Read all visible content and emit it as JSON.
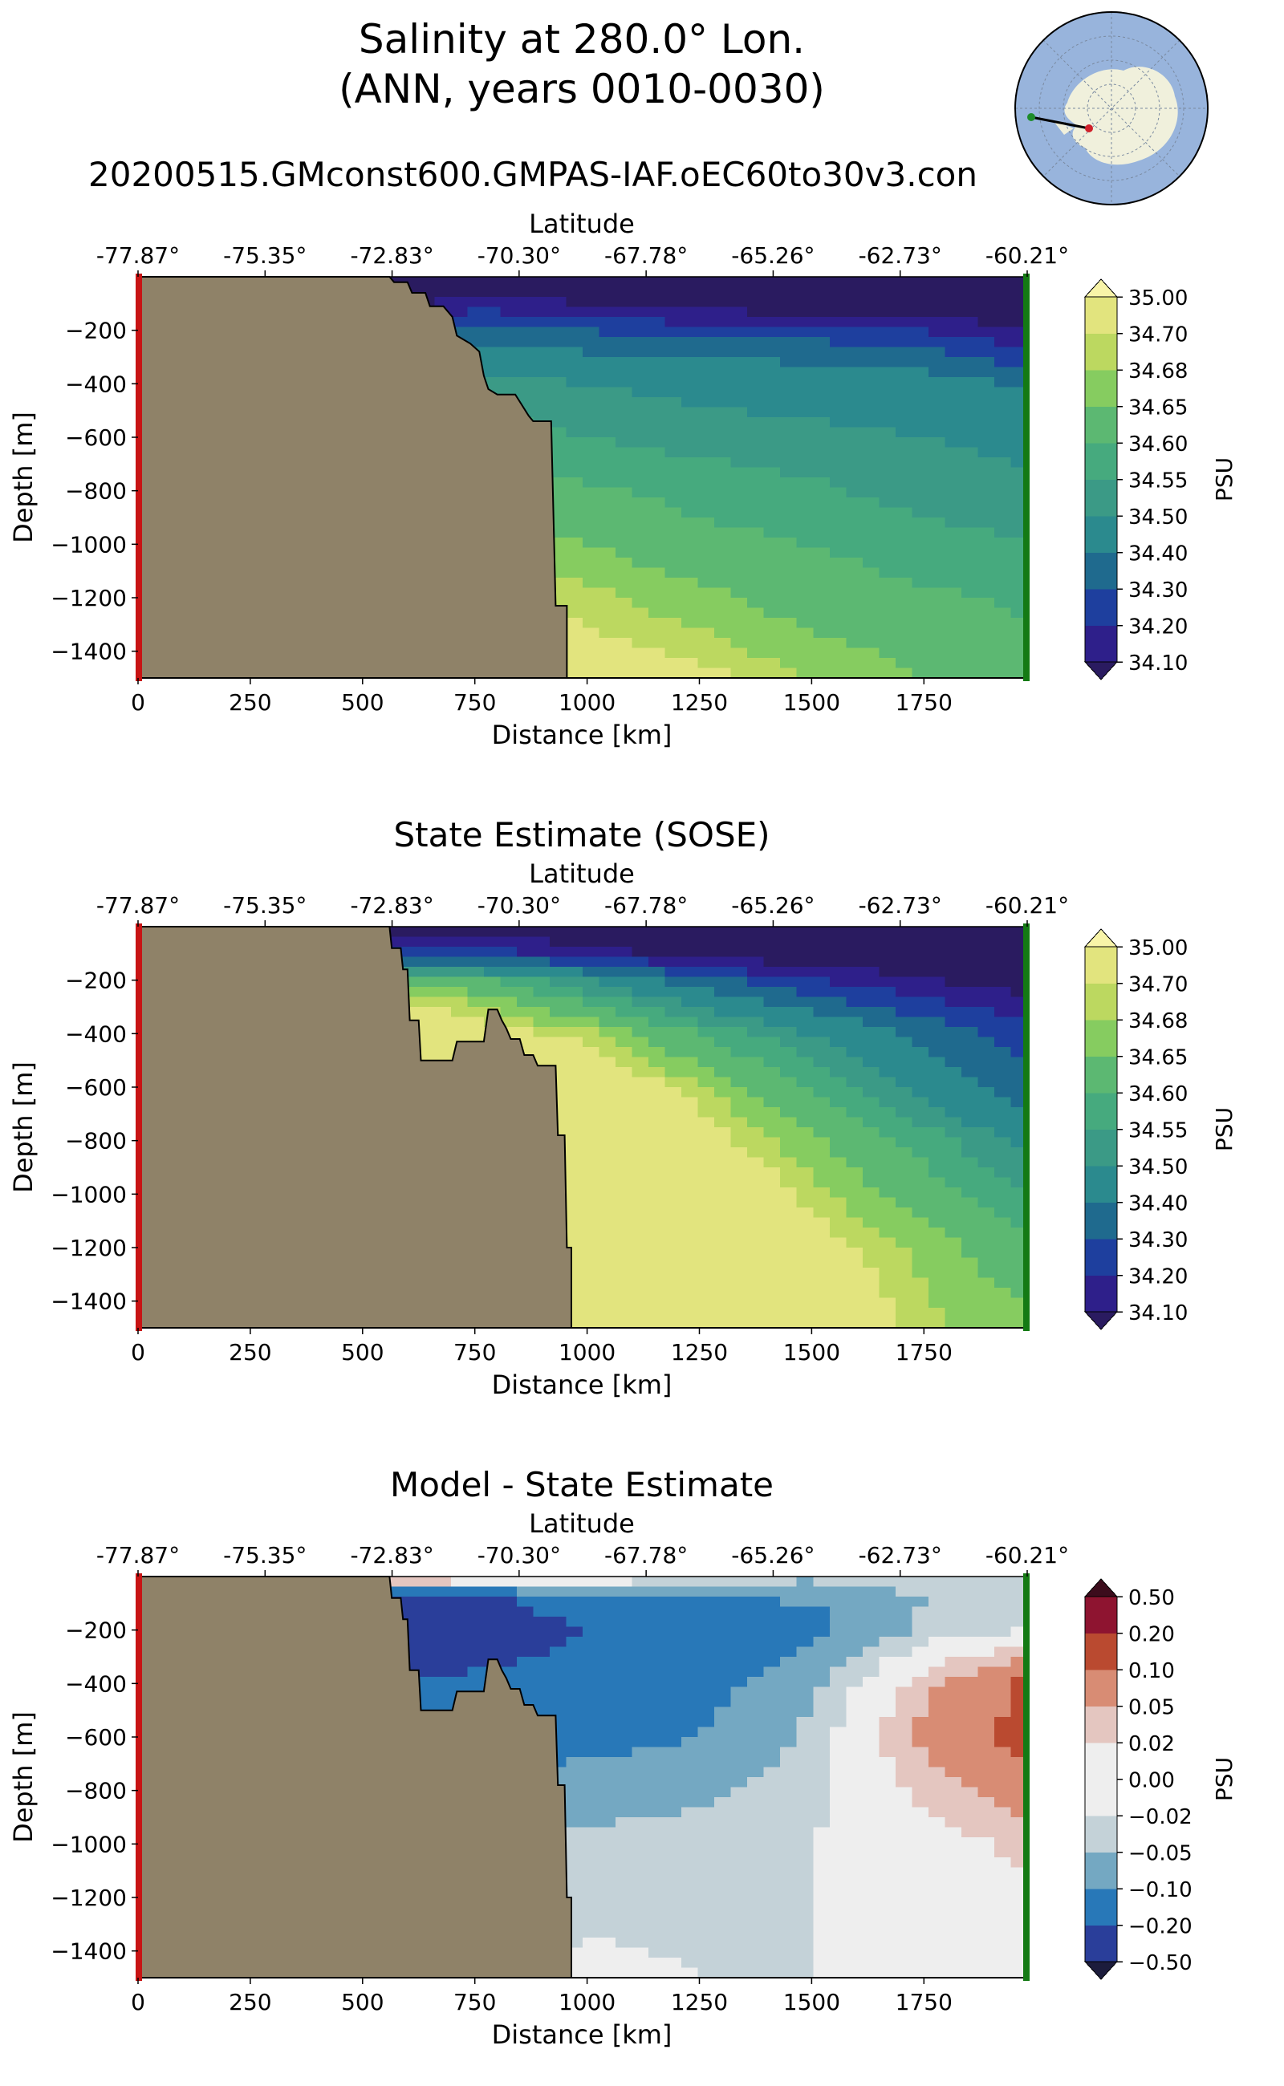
{
  "figure": {
    "title_line1": "Salinity at 280.0° Lon.",
    "title_line2": "(ANN, years 0010-0030)",
    "run_name": "20200515.GMconst600.GMPAS-IAF.oEC60to30v3.con"
  },
  "inset_map": {
    "ocean_color": "#98b4dc",
    "land_color": "#f0f0dc",
    "start_marker_color": "#d0202a",
    "end_marker_color": "#1e8c2a"
  },
  "chart_data": [
    {
      "type": "heatmap",
      "subtitle": "",
      "xlabel": "Distance [km]",
      "ylabel": "Depth [m]",
      "top_axis_label": "Latitude",
      "xlim": [
        0,
        1980
      ],
      "ylim": [
        -1500,
        0
      ],
      "x_ticks": [
        0,
        250,
        500,
        750,
        1000,
        1250,
        1500,
        1750
      ],
      "y_ticks": [
        -200,
        -400,
        -600,
        -800,
        -1000,
        -1200,
        -1400
      ],
      "y_tick_labels": [
        "−200",
        "−400",
        "−600",
        "−800",
        "−1000",
        "−1200",
        "−1400"
      ],
      "lat_ticks": [
        "-77.87°",
        "-75.35°",
        "-72.83°",
        "-70.30°",
        "-67.78°",
        "-65.26°",
        "-62.73°",
        "-60.21°"
      ],
      "colorbar_label": "PSU",
      "colorbar_ticks": [
        "35.00",
        "34.70",
        "34.68",
        "34.65",
        "34.60",
        "34.55",
        "34.50",
        "34.40",
        "34.30",
        "34.20",
        "34.10"
      ],
      "levels": [
        34.1,
        34.2,
        34.3,
        34.4,
        34.5,
        34.55,
        34.6,
        34.65,
        34.68,
        34.7,
        35.0
      ],
      "colors": [
        "#2e1f8a",
        "#1e3f9e",
        "#1f6a8e",
        "#2b8a8e",
        "#3b9a86",
        "#46aa7e",
        "#5cb872",
        "#86cc60",
        "#bcd860",
        "#e2e47e"
      ],
      "under_color": "#2a1b60",
      "over_color": "#f8f4a8",
      "land_color": "#8f8268",
      "start_marker_color": "#c81414",
      "end_marker_color": "#147a14",
      "land_profile": {
        "x": [
          0,
          560,
          570,
          600,
          610,
          640,
          650,
          680,
          700,
          710,
          740,
          760,
          770,
          780,
          800,
          820,
          840,
          870,
          880,
          920,
          930,
          955,
          955,
          1980
        ],
        "depth": [
          0,
          0,
          -20,
          -20,
          -60,
          -60,
          -110,
          -110,
          -150,
          -220,
          -250,
          -280,
          -370,
          -420,
          -440,
          -440,
          -440,
          -520,
          -540,
          -540,
          -1230,
          -1230,
          -1500,
          -1500
        ]
      },
      "field": {
        "x": [
          0,
          250,
          500,
          750,
          1000,
          1250,
          1500,
          1750,
          1980
        ],
        "depth": [
          0,
          -100,
          -200,
          -300,
          -400,
          -600,
          -800,
          -1000,
          -1200,
          -1500
        ],
        "values": [
          [
            34.0,
            34.0,
            34.0,
            34.0,
            34.0,
            34.0,
            34.0,
            34.0,
            34.0
          ],
          [
            34.0,
            34.0,
            34.0,
            34.15,
            34.1,
            34.05,
            34.0,
            34.0,
            34.0
          ],
          [
            34.25,
            34.25,
            34.25,
            34.35,
            34.3,
            34.25,
            34.25,
            34.2,
            34.1
          ],
          [
            34.45,
            34.45,
            34.45,
            34.45,
            34.42,
            34.4,
            34.38,
            34.35,
            34.25
          ],
          [
            34.52,
            34.52,
            34.52,
            34.52,
            34.5,
            34.48,
            34.46,
            34.45,
            34.38
          ],
          [
            34.58,
            34.58,
            34.58,
            34.58,
            34.55,
            34.53,
            34.52,
            34.5,
            34.48
          ],
          [
            34.63,
            34.63,
            34.63,
            34.63,
            34.61,
            34.58,
            34.56,
            34.53,
            34.52
          ],
          [
            34.67,
            34.67,
            34.67,
            34.67,
            34.65,
            34.62,
            34.6,
            34.57,
            34.55
          ],
          [
            34.72,
            34.72,
            34.72,
            34.72,
            34.69,
            34.66,
            34.63,
            34.61,
            34.59
          ],
          [
            34.75,
            34.75,
            34.75,
            34.75,
            34.72,
            34.71,
            34.68,
            34.65,
            34.62
          ]
        ]
      }
    },
    {
      "type": "heatmap",
      "subtitle": "State Estimate (SOSE)",
      "xlabel": "Distance [km]",
      "ylabel": "Depth [m]",
      "top_axis_label": "Latitude",
      "xlim": [
        0,
        1980
      ],
      "ylim": [
        -1500,
        0
      ],
      "x_ticks": [
        0,
        250,
        500,
        750,
        1000,
        1250,
        1500,
        1750
      ],
      "y_ticks": [
        -200,
        -400,
        -600,
        -800,
        -1000,
        -1200,
        -1400
      ],
      "y_tick_labels": [
        "−200",
        "−400",
        "−600",
        "−800",
        "−1000",
        "−1200",
        "−1400"
      ],
      "lat_ticks": [
        "-77.87°",
        "-75.35°",
        "-72.83°",
        "-70.30°",
        "-67.78°",
        "-65.26°",
        "-62.73°",
        "-60.21°"
      ],
      "colorbar_label": "PSU",
      "colorbar_ticks": [
        "35.00",
        "34.70",
        "34.68",
        "34.65",
        "34.60",
        "34.55",
        "34.50",
        "34.40",
        "34.30",
        "34.20",
        "34.10"
      ],
      "levels": [
        34.1,
        34.2,
        34.3,
        34.4,
        34.5,
        34.55,
        34.6,
        34.65,
        34.68,
        34.7,
        35.0
      ],
      "colors": [
        "#2e1f8a",
        "#1e3f9e",
        "#1f6a8e",
        "#2b8a8e",
        "#3b9a86",
        "#46aa7e",
        "#5cb872",
        "#86cc60",
        "#bcd860",
        "#e2e47e"
      ],
      "under_color": "#2a1b60",
      "over_color": "#f8f4a8",
      "land_color": "#8f8268",
      "start_marker_color": "#c81414",
      "end_marker_color": "#147a14",
      "land_profile": {
        "x": [
          0,
          560,
          565,
          585,
          590,
          600,
          605,
          625,
          630,
          700,
          710,
          770,
          780,
          800,
          810,
          820,
          830,
          850,
          860,
          880,
          890,
          930,
          935,
          950,
          955,
          965,
          965,
          1980
        ],
        "depth": [
          0,
          0,
          -80,
          -80,
          -160,
          -160,
          -350,
          -350,
          -500,
          -500,
          -430,
          -430,
          -310,
          -310,
          -350,
          -380,
          -420,
          -420,
          -480,
          -480,
          -520,
          -520,
          -780,
          -780,
          -1200,
          -1200,
          -1500,
          -1500
        ]
      },
      "field": {
        "x": [
          0,
          250,
          500,
          750,
          1000,
          1250,
          1500,
          1750,
          1980
        ],
        "depth": [
          0,
          -100,
          -200,
          -300,
          -400,
          -600,
          -800,
          -1000,
          -1200,
          -1500
        ],
        "values": [
          [
            34.0,
            34.0,
            34.0,
            34.0,
            34.0,
            34.0,
            34.0,
            34.0,
            34.0
          ],
          [
            34.2,
            34.2,
            34.2,
            34.25,
            34.15,
            34.05,
            34.0,
            34.0,
            34.0
          ],
          [
            34.65,
            34.65,
            34.65,
            34.62,
            34.5,
            34.35,
            34.2,
            34.1,
            34.05
          ],
          [
            34.72,
            34.72,
            34.72,
            34.69,
            34.62,
            34.5,
            34.38,
            34.25,
            34.15
          ],
          [
            34.75,
            34.75,
            34.75,
            34.72,
            34.69,
            34.6,
            34.5,
            34.38,
            34.25
          ],
          [
            34.8,
            34.8,
            34.8,
            34.8,
            34.74,
            34.69,
            34.6,
            34.48,
            34.35
          ],
          [
            34.85,
            34.85,
            34.85,
            34.85,
            34.78,
            34.72,
            34.66,
            34.58,
            34.48
          ],
          [
            34.85,
            34.85,
            34.85,
            34.85,
            34.82,
            34.76,
            34.69,
            34.63,
            34.56
          ],
          [
            34.85,
            34.85,
            34.85,
            34.85,
            34.82,
            34.8,
            34.72,
            34.67,
            34.62
          ],
          [
            34.85,
            34.85,
            34.85,
            34.85,
            34.82,
            34.8,
            34.75,
            34.69,
            34.66
          ]
        ]
      }
    },
    {
      "type": "heatmap",
      "subtitle": "Model - State Estimate",
      "xlabel": "Distance [km]",
      "ylabel": "Depth [m]",
      "top_axis_label": "Latitude",
      "xlim": [
        0,
        1980
      ],
      "ylim": [
        -1500,
        0
      ],
      "x_ticks": [
        0,
        250,
        500,
        750,
        1000,
        1250,
        1500,
        1750
      ],
      "y_ticks": [
        -200,
        -400,
        -600,
        -800,
        -1000,
        -1200,
        -1400
      ],
      "y_tick_labels": [
        "−200",
        "−400",
        "−600",
        "−800",
        "−1000",
        "−1200",
        "−1400"
      ],
      "lat_ticks": [
        "-77.87°",
        "-75.35°",
        "-72.83°",
        "-70.30°",
        "-67.78°",
        "-65.26°",
        "-62.73°",
        "-60.21°"
      ],
      "colorbar_label": "PSU",
      "colorbar_ticks": [
        "0.50",
        "0.20",
        "0.10",
        "0.05",
        "0.02",
        "0.00",
        "−0.02",
        "−0.05",
        "−0.10",
        "−0.20",
        "−0.50"
      ],
      "levels": [
        -0.5,
        -0.2,
        -0.1,
        -0.05,
        -0.02,
        0.0,
        0.02,
        0.05,
        0.1,
        0.2,
        0.5
      ],
      "colors": [
        "#2a3e9a",
        "#2878b8",
        "#74a8c2",
        "#c4d2d8",
        "#eeeeee",
        "#eeeeee",
        "#e4c6c0",
        "#d88c74",
        "#ba4a30",
        "#8e1430"
      ],
      "under_color": "#1c1c3c",
      "over_color": "#3c0c1c",
      "land_color": "#8f8268",
      "start_marker_color": "#c81414",
      "end_marker_color": "#147a14",
      "land_profile": {
        "x": [
          0,
          560,
          565,
          585,
          590,
          600,
          605,
          625,
          630,
          700,
          710,
          770,
          780,
          800,
          810,
          820,
          830,
          850,
          860,
          880,
          890,
          930,
          935,
          950,
          955,
          965,
          965,
          1980
        ],
        "depth": [
          0,
          0,
          -80,
          -80,
          -160,
          -160,
          -350,
          -350,
          -500,
          -500,
          -430,
          -430,
          -310,
          -310,
          -350,
          -380,
          -420,
          -420,
          -480,
          -480,
          -520,
          -520,
          -780,
          -780,
          -1200,
          -1200,
          -1500,
          -1500
        ]
      },
      "field": {
        "x": [
          0,
          250,
          500,
          750,
          1000,
          1250,
          1500,
          1750,
          1980
        ],
        "depth": [
          0,
          -100,
          -200,
          -300,
          -400,
          -600,
          -800,
          -1000,
          -1200,
          -1500
        ],
        "values": [
          [
            0.15,
            0.15,
            0.15,
            0.06,
            0.03,
            -0.02,
            -0.04,
            -0.03,
            -0.03
          ],
          [
            -0.3,
            -0.3,
            -0.3,
            -0.25,
            -0.15,
            -0.12,
            -0.1,
            -0.05,
            -0.03
          ],
          [
            -0.3,
            -0.3,
            -0.3,
            -0.25,
            -0.2,
            -0.15,
            -0.12,
            -0.04,
            -0.02
          ],
          [
            -0.25,
            -0.25,
            -0.25,
            -0.22,
            -0.18,
            -0.16,
            -0.08,
            0.0,
            0.05
          ],
          [
            -0.2,
            -0.2,
            -0.2,
            -0.18,
            -0.15,
            -0.12,
            -0.06,
            0.04,
            0.11
          ],
          [
            -0.15,
            -0.15,
            -0.15,
            -0.14,
            -0.12,
            -0.1,
            -0.04,
            0.06,
            0.12
          ],
          [
            -0.08,
            -0.08,
            -0.08,
            -0.08,
            -0.07,
            -0.06,
            -0.03,
            0.03,
            0.07
          ],
          [
            -0.05,
            -0.05,
            -0.05,
            -0.05,
            -0.04,
            -0.03,
            -0.02,
            0.0,
            0.03
          ],
          [
            -0.04,
            -0.04,
            -0.04,
            -0.04,
            -0.03,
            -0.03,
            -0.02,
            -0.01,
            0.01
          ],
          [
            -0.03,
            -0.03,
            -0.03,
            -0.03,
            -0.01,
            -0.02,
            -0.02,
            -0.01,
            0.01
          ]
        ]
      }
    }
  ]
}
